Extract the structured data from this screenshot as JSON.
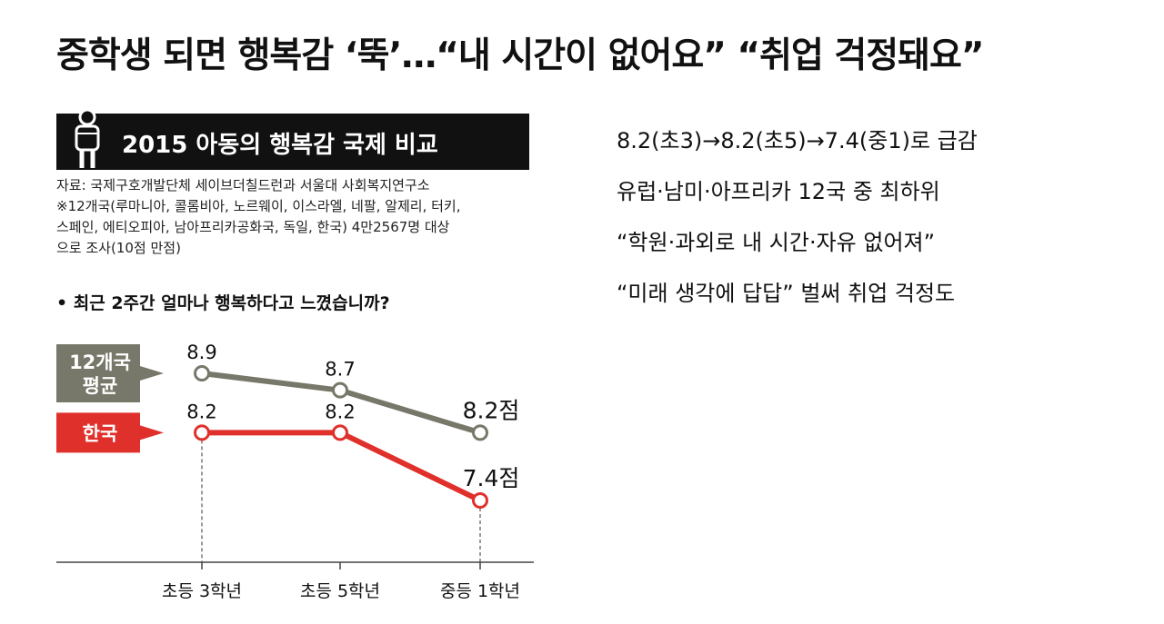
{
  "headline": "중학생 되면 행복감 ‘뚝’…“내 시간이 없어요” “취업 걱정돼요”",
  "bullets": [
    "8.2(초3)→8.2(초5)→7.4(중1)로 급감",
    "유럽·남미·아프리카 12국 중 최하위",
    "“학원·과외로 내 시간·자유 없어져”",
    "“미래 생각에 답답” 벌써 취업 걱정도"
  ],
  "graphic": {
    "title": "2015 아동의 행복감 국제 비교",
    "icon": "child-figure-icon",
    "source_lines": [
      "자료: 국제구호개발단체 세이브더칠드런과 서울대 사회복지연구소",
      "※12개국(루마니아, 콜롬비아, 노르웨이, 이스라엘, 네팔, 알제리, 터키,",
      "스페인, 에티오피아, 남아프리카공화국, 독일, 한국) 4만2567명 대상",
      "으로 조사(10점 만점)"
    ],
    "question": "• 최근 2주간 얼마나 행복하다고 느꼈습니까?"
  },
  "chart_data": {
    "type": "line",
    "categories": [
      "초등 3학년",
      "초등 5학년",
      "중등 1학년"
    ],
    "series": [
      {
        "name": "12개국 평균",
        "label_lines": [
          "12개국",
          "평균"
        ],
        "values": [
          8.9,
          8.7,
          8.2
        ],
        "value_labels": [
          "8.9",
          "8.7",
          "8.2점"
        ],
        "color": "#77776a"
      },
      {
        "name": "한국",
        "label_lines": [
          "한국"
        ],
        "values": [
          8.2,
          8.2,
          7.4
        ],
        "value_labels": [
          "8.2",
          "8.2",
          "7.4점"
        ],
        "color": "#e0302b"
      }
    ],
    "ylim": [
      6.0,
      9.2
    ],
    "grid": false,
    "legend": "left, arrow-shaped tags"
  }
}
